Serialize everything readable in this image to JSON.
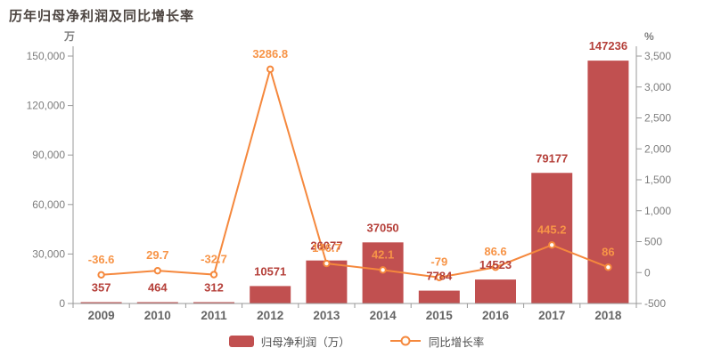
{
  "title": "历年归母净利润及同比增长率",
  "colors": {
    "bar": "#c15050",
    "bar_label": "#b5403a",
    "line": "#f5883d",
    "line_label": "#f79447",
    "marker_fill": "#fffdf8",
    "axis": "#999999",
    "tick_text": "#7d7d7d",
    "year_text": "#666666",
    "title_text": "#4c4440"
  },
  "left_axis": {
    "unit": "万",
    "ticks": [
      {
        "label": "0",
        "value": 0
      },
      {
        "label": "30,000",
        "value": 30000
      },
      {
        "label": "60,000",
        "value": 60000
      },
      {
        "label": "90,000",
        "value": 90000
      },
      {
        "label": "120,000",
        "value": 120000
      },
      {
        "label": "150,000",
        "value": 150000
      }
    ]
  },
  "right_axis": {
    "unit": "%",
    "ticks": [
      {
        "label": "-500",
        "value": -500
      },
      {
        "label": "0",
        "value": 0
      },
      {
        "label": "500",
        "value": 500
      },
      {
        "label": "1,000",
        "value": 1000
      },
      {
        "label": "1,500",
        "value": 1500
      },
      {
        "label": "2,000",
        "value": 2000
      },
      {
        "label": "2,500",
        "value": 2500
      },
      {
        "label": "3,000",
        "value": 3000
      },
      {
        "label": "3,500",
        "value": 3500
      }
    ]
  },
  "legend": {
    "items": [
      {
        "label": "归母净利润（万）",
        "type": "bar"
      },
      {
        "label": "同比增长率",
        "type": "line"
      }
    ]
  },
  "chart_data": {
    "type": "bar",
    "title": "历年归母净利润及同比增长率",
    "categories": [
      "2009",
      "2010",
      "2011",
      "2012",
      "2013",
      "2014",
      "2015",
      "2016",
      "2017",
      "2018"
    ],
    "series": [
      {
        "name": "归母净利润（万）",
        "type": "bar",
        "axis": "left",
        "values": [
          357,
          464,
          312,
          10571,
          26077,
          37050,
          7784,
          14523,
          79177,
          147236
        ],
        "labels": [
          "357",
          "464",
          "312",
          "10571",
          "26077",
          "37050",
          "7784",
          "14523",
          "79177",
          "147236"
        ]
      },
      {
        "name": "同比增长率",
        "type": "line",
        "axis": "right",
        "values": [
          -36.6,
          29.7,
          -32.7,
          3286.8,
          146.7,
          42.1,
          -79,
          86.6,
          445.2,
          86
        ],
        "labels": [
          "-36.6",
          "29.7",
          "-32.7",
          "3286.8",
          "146.7",
          "42.1",
          "-79",
          "86.6",
          "445.2",
          "86"
        ]
      }
    ],
    "ylim_left": [
      0,
      150000
    ],
    "ylim_right": [
      -500,
      3500
    ],
    "xlabel": "",
    "ylabel_left": "万",
    "ylabel_right": "%",
    "grid": false,
    "legend_position": "bottom"
  }
}
